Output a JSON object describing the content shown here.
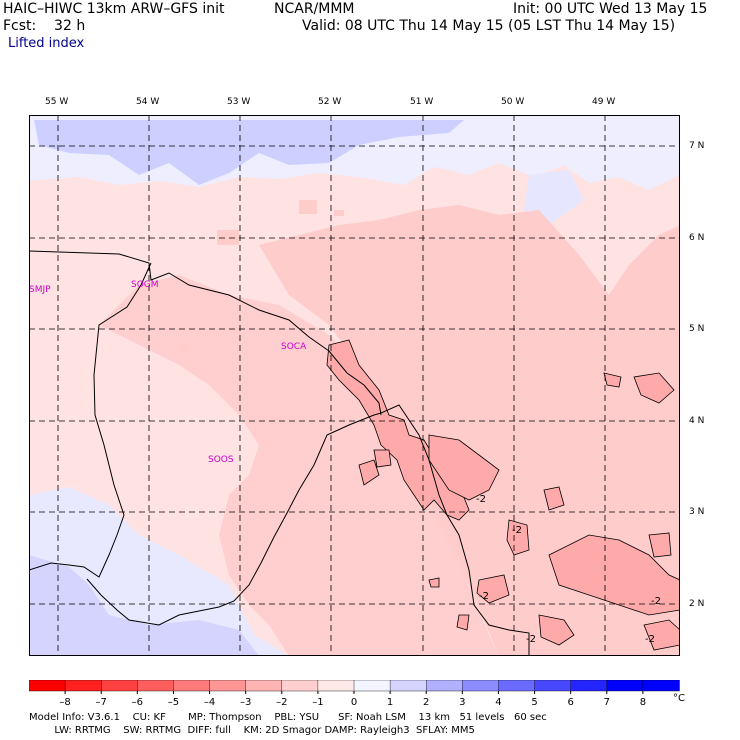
{
  "header": {
    "model": "HAIC–HIWC 13km ARW–GFS init",
    "org": "NCAR/MMM",
    "init": "Init: 00 UTC Wed 13 May 15",
    "fcst": "Fcst:    32 h",
    "valid": "Valid: 08 UTC Thu 14 May 15 (05 LST Thu 14 May 15)",
    "field": "Lifted index"
  },
  "axes": {
    "lon_labels": [
      "55 W",
      "54 W",
      "53 W",
      "52 W",
      "51 W",
      "50 W",
      "49 W"
    ],
    "lat_labels": [
      "7 N",
      "6 N",
      "5 N",
      "4 N",
      "3 N",
      "2 N"
    ]
  },
  "stations": [
    "SMJP",
    "SOGM",
    "SOCA",
    "SOOS"
  ],
  "contour_labels": [
    "-2",
    "-2",
    "-2",
    "-2",
    "-2",
    "-2"
  ],
  "colorbar": {
    "ticks": [
      "–8",
      "–7",
      "–6",
      "–5",
      "–4",
      "–3",
      "–2",
      "–1",
      "0",
      "1",
      "2",
      "3",
      "4",
      "5",
      "6",
      "7",
      "8"
    ],
    "unit": "°C",
    "colors": [
      "#ff0000",
      "#ff2020",
      "#ff4040",
      "#ff5e5e",
      "#ff7a7a",
      "#ff9696",
      "#ffb4b4",
      "#ffcfcf",
      "#ffe8e8",
      "#f4f4ff",
      "#d4d4ff",
      "#b0b0ff",
      "#8c8cff",
      "#6a6aff",
      "#4848ff",
      "#2424ff",
      "#0000ff"
    ]
  },
  "footer": {
    "line1": "Model Info: V3.6.1    CU: KF       MP: Thompson    PBL: YSU      SF: Noah LSM    13 km   51 levels   60 sec",
    "line2": "        LW: RRTMG    SW: RRTMG  DIFF: full    KM: 2D Smagor DAMP: Rayleigh3  SFLAY: MM5"
  }
}
